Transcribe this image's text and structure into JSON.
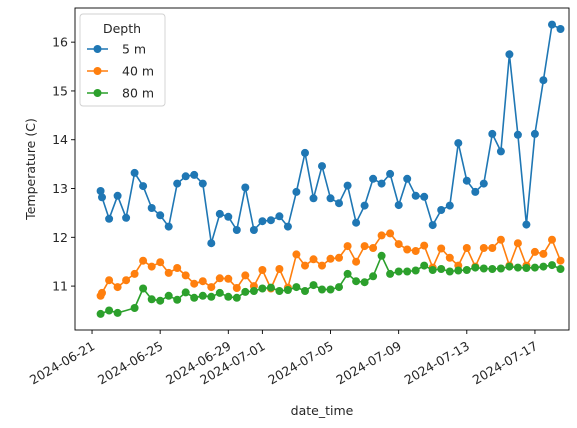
{
  "chart_data": {
    "type": "line",
    "xlabel": "date_time",
    "ylabel": "Temperature (C)",
    "x_axis_type": "date",
    "xlim": [
      "2024-06-20",
      "2024-07-19"
    ],
    "ylim": [
      10.1,
      16.7
    ],
    "x_ticks": [
      "2024-06-21",
      "2024-06-25",
      "2024-06-29",
      "2024-07-01",
      "2024-07-05",
      "2024-07-09",
      "2024-07-13",
      "2024-07-17"
    ],
    "y_ticks": [
      11,
      12,
      13,
      14,
      15,
      16
    ],
    "grid": false,
    "legend": {
      "title": "Depth",
      "position": "top-left"
    },
    "series": [
      {
        "name": "5 m",
        "color": "#1f77b4",
        "points": [
          [
            "2024-06-21 12:00",
            12.95
          ],
          [
            "2024-06-21 14:00",
            12.82
          ],
          [
            "2024-06-22 00:00",
            12.38
          ],
          [
            "2024-06-22 12:00",
            12.85
          ],
          [
            "2024-06-23 00:00",
            12.4
          ],
          [
            "2024-06-23 12:00",
            13.32
          ],
          [
            "2024-06-24 00:00",
            13.05
          ],
          [
            "2024-06-24 12:00",
            12.6
          ],
          [
            "2024-06-25 00:00",
            12.45
          ],
          [
            "2024-06-25 12:00",
            12.22
          ],
          [
            "2024-06-26 00:00",
            13.1
          ],
          [
            "2024-06-26 12:00",
            13.25
          ],
          [
            "2024-06-27 00:00",
            13.28
          ],
          [
            "2024-06-27 12:00",
            13.1
          ],
          [
            "2024-06-28 00:00",
            11.88
          ],
          [
            "2024-06-28 12:00",
            12.48
          ],
          [
            "2024-06-29 00:00",
            12.42
          ],
          [
            "2024-06-29 12:00",
            12.15
          ],
          [
            "2024-06-30 00:00",
            13.02
          ],
          [
            "2024-06-30 12:00",
            12.15
          ],
          [
            "2024-07-01 00:00",
            12.33
          ],
          [
            "2024-07-01 12:00",
            12.35
          ],
          [
            "2024-07-02 00:00",
            12.43
          ],
          [
            "2024-07-02 12:00",
            12.22
          ],
          [
            "2024-07-03 00:00",
            12.93
          ],
          [
            "2024-07-03 12:00",
            13.73
          ],
          [
            "2024-07-04 00:00",
            12.8
          ],
          [
            "2024-07-04 12:00",
            13.46
          ],
          [
            "2024-07-05 00:00",
            12.8
          ],
          [
            "2024-07-05 12:00",
            12.7
          ],
          [
            "2024-07-06 00:00",
            13.06
          ],
          [
            "2024-07-06 12:00",
            12.3
          ],
          [
            "2024-07-07 00:00",
            12.65
          ],
          [
            "2024-07-07 12:00",
            13.2
          ],
          [
            "2024-07-08 00:00",
            13.1
          ],
          [
            "2024-07-08 12:00",
            13.3
          ],
          [
            "2024-07-09 00:00",
            12.66
          ],
          [
            "2024-07-09 12:00",
            13.2
          ],
          [
            "2024-07-10 00:00",
            12.85
          ],
          [
            "2024-07-10 12:00",
            12.83
          ],
          [
            "2024-07-11 00:00",
            12.25
          ],
          [
            "2024-07-11 12:00",
            12.56
          ],
          [
            "2024-07-12 00:00",
            12.65
          ],
          [
            "2024-07-12 12:00",
            13.93
          ],
          [
            "2024-07-13 00:00",
            13.16
          ],
          [
            "2024-07-13 12:00",
            12.93
          ],
          [
            "2024-07-14 00:00",
            13.1
          ],
          [
            "2024-07-14 12:00",
            14.12
          ],
          [
            "2024-07-15 00:00",
            13.76
          ],
          [
            "2024-07-15 12:00",
            15.75
          ],
          [
            "2024-07-16 00:00",
            14.1
          ],
          [
            "2024-07-16 12:00",
            12.26
          ],
          [
            "2024-07-17 00:00",
            14.12
          ],
          [
            "2024-07-17 12:00",
            15.22
          ],
          [
            "2024-07-18 00:00",
            16.36
          ],
          [
            "2024-07-18 12:00",
            16.27
          ]
        ]
      },
      {
        "name": "40 m",
        "color": "#ff7f0e",
        "points": [
          [
            "2024-06-21 12:00",
            10.8
          ],
          [
            "2024-06-21 14:00",
            10.86
          ],
          [
            "2024-06-22 00:00",
            11.12
          ],
          [
            "2024-06-22 12:00",
            10.98
          ],
          [
            "2024-06-23 00:00",
            11.12
          ],
          [
            "2024-06-23 12:00",
            11.25
          ],
          [
            "2024-06-24 00:00",
            11.52
          ],
          [
            "2024-06-24 12:00",
            11.4
          ],
          [
            "2024-06-25 00:00",
            11.49
          ],
          [
            "2024-06-25 12:00",
            11.27
          ],
          [
            "2024-06-26 00:00",
            11.37
          ],
          [
            "2024-06-26 12:00",
            11.22
          ],
          [
            "2024-06-27 00:00",
            11.05
          ],
          [
            "2024-06-27 12:00",
            11.1
          ],
          [
            "2024-06-28 00:00",
            10.98
          ],
          [
            "2024-06-28 12:00",
            11.16
          ],
          [
            "2024-06-29 00:00",
            11.15
          ],
          [
            "2024-06-29 12:00",
            10.96
          ],
          [
            "2024-06-30 00:00",
            11.22
          ],
          [
            "2024-06-30 12:00",
            11.0
          ],
          [
            "2024-07-01 00:00",
            11.33
          ],
          [
            "2024-07-01 12:00",
            10.95
          ],
          [
            "2024-07-02 00:00",
            11.35
          ],
          [
            "2024-07-02 12:00",
            10.97
          ],
          [
            "2024-07-03 00:00",
            11.65
          ],
          [
            "2024-07-03 12:00",
            11.42
          ],
          [
            "2024-07-04 00:00",
            11.55
          ],
          [
            "2024-07-04 12:00",
            11.42
          ],
          [
            "2024-07-05 00:00",
            11.56
          ],
          [
            "2024-07-05 12:00",
            11.58
          ],
          [
            "2024-07-06 00:00",
            11.82
          ],
          [
            "2024-07-06 12:00",
            11.5
          ],
          [
            "2024-07-07 00:00",
            11.82
          ],
          [
            "2024-07-07 12:00",
            11.78
          ],
          [
            "2024-07-08 00:00",
            12.04
          ],
          [
            "2024-07-08 12:00",
            12.08
          ],
          [
            "2024-07-09 00:00",
            11.86
          ],
          [
            "2024-07-09 12:00",
            11.75
          ],
          [
            "2024-07-10 00:00",
            11.72
          ],
          [
            "2024-07-10 12:00",
            11.83
          ],
          [
            "2024-07-11 00:00",
            11.38
          ],
          [
            "2024-07-11 12:00",
            11.77
          ],
          [
            "2024-07-12 00:00",
            11.58
          ],
          [
            "2024-07-12 12:00",
            11.42
          ],
          [
            "2024-07-13 00:00",
            11.78
          ],
          [
            "2024-07-13 12:00",
            11.4
          ],
          [
            "2024-07-14 00:00",
            11.78
          ],
          [
            "2024-07-14 12:00",
            11.78
          ],
          [
            "2024-07-15 00:00",
            11.95
          ],
          [
            "2024-07-15 12:00",
            11.42
          ],
          [
            "2024-07-16 00:00",
            11.88
          ],
          [
            "2024-07-16 12:00",
            11.42
          ],
          [
            "2024-07-17 00:00",
            11.7
          ],
          [
            "2024-07-17 12:00",
            11.66
          ],
          [
            "2024-07-18 00:00",
            11.95
          ],
          [
            "2024-07-18 12:00",
            11.52
          ]
        ]
      },
      {
        "name": "80 m",
        "color": "#2ca02c",
        "points": [
          [
            "2024-06-21 12:00",
            10.43
          ],
          [
            "2024-06-22 00:00",
            10.5
          ],
          [
            "2024-06-22 12:00",
            10.45
          ],
          [
            "2024-06-23 12:00",
            10.55
          ],
          [
            "2024-06-24 00:00",
            10.95
          ],
          [
            "2024-06-24 12:00",
            10.73
          ],
          [
            "2024-06-25 00:00",
            10.7
          ],
          [
            "2024-06-25 12:00",
            10.8
          ],
          [
            "2024-06-26 00:00",
            10.72
          ],
          [
            "2024-06-26 12:00",
            10.87
          ],
          [
            "2024-06-27 00:00",
            10.76
          ],
          [
            "2024-06-27 12:00",
            10.8
          ],
          [
            "2024-06-28 00:00",
            10.78
          ],
          [
            "2024-06-28 12:00",
            10.86
          ],
          [
            "2024-06-29 00:00",
            10.78
          ],
          [
            "2024-06-29 12:00",
            10.76
          ],
          [
            "2024-06-30 00:00",
            10.88
          ],
          [
            "2024-06-30 12:00",
            10.9
          ],
          [
            "2024-07-01 00:00",
            10.95
          ],
          [
            "2024-07-01 12:00",
            10.97
          ],
          [
            "2024-07-02 00:00",
            10.9
          ],
          [
            "2024-07-02 12:00",
            10.92
          ],
          [
            "2024-07-03 00:00",
            10.98
          ],
          [
            "2024-07-03 12:00",
            10.9
          ],
          [
            "2024-07-04 00:00",
            11.02
          ],
          [
            "2024-07-04 12:00",
            10.93
          ],
          [
            "2024-07-05 00:00",
            10.93
          ],
          [
            "2024-07-05 12:00",
            10.98
          ],
          [
            "2024-07-06 00:00",
            11.25
          ],
          [
            "2024-07-06 12:00",
            11.1
          ],
          [
            "2024-07-07 00:00",
            11.08
          ],
          [
            "2024-07-07 12:00",
            11.2
          ],
          [
            "2024-07-08 00:00",
            11.62
          ],
          [
            "2024-07-08 12:00",
            11.25
          ],
          [
            "2024-07-09 00:00",
            11.3
          ],
          [
            "2024-07-09 12:00",
            11.3
          ],
          [
            "2024-07-10 00:00",
            11.32
          ],
          [
            "2024-07-10 12:00",
            11.42
          ],
          [
            "2024-07-11 00:00",
            11.33
          ],
          [
            "2024-07-11 12:00",
            11.35
          ],
          [
            "2024-07-12 00:00",
            11.3
          ],
          [
            "2024-07-12 12:00",
            11.32
          ],
          [
            "2024-07-13 00:00",
            11.33
          ],
          [
            "2024-07-13 12:00",
            11.38
          ],
          [
            "2024-07-14 00:00",
            11.36
          ],
          [
            "2024-07-14 12:00",
            11.35
          ],
          [
            "2024-07-15 00:00",
            11.36
          ],
          [
            "2024-07-15 12:00",
            11.4
          ],
          [
            "2024-07-16 00:00",
            11.38
          ],
          [
            "2024-07-16 12:00",
            11.37
          ],
          [
            "2024-07-17 00:00",
            11.38
          ],
          [
            "2024-07-17 12:00",
            11.4
          ],
          [
            "2024-07-18 00:00",
            11.43
          ],
          [
            "2024-07-18 12:00",
            11.35
          ]
        ]
      }
    ]
  }
}
